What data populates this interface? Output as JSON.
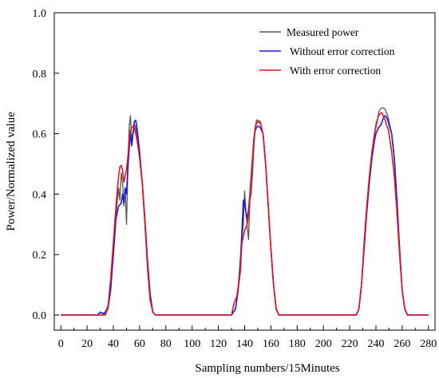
{
  "chart_data": {
    "type": "line",
    "title": "",
    "xlabel": "Sampling numbers/15Minutes",
    "ylabel": "Power/Normalized value",
    "xlim": [
      -5,
      285
    ],
    "ylim": [
      -0.05,
      1.0
    ],
    "xticks": [
      0,
      20,
      40,
      60,
      80,
      100,
      120,
      140,
      160,
      180,
      200,
      220,
      240,
      260,
      280
    ],
    "yticks": [
      0.0,
      0.2,
      0.4,
      0.6,
      0.8,
      1.0
    ],
    "grid": false,
    "legend_position": "top-right",
    "series": [
      {
        "name": "Measured power",
        "color": "#555555",
        "x": [
          0,
          30,
          32,
          34,
          36,
          38,
          40,
          42,
          44,
          45,
          46,
          47,
          48,
          49,
          50,
          51,
          52,
          53,
          54,
          55,
          56,
          57,
          58,
          60,
          62,
          64,
          66,
          68,
          70,
          72,
          74,
          80,
          130,
          133,
          135,
          137,
          138,
          139,
          140,
          141,
          142,
          143,
          144,
          145,
          146,
          147,
          148,
          149,
          150,
          152,
          154,
          156,
          158,
          160,
          162,
          164,
          166,
          168,
          170,
          175,
          225,
          227,
          229,
          231,
          233,
          235,
          237,
          239,
          240,
          241,
          242,
          243,
          244,
          245,
          246,
          247,
          248,
          249,
          250,
          252,
          254,
          256,
          258,
          260,
          262,
          264,
          270,
          280
        ],
        "y": [
          0,
          0,
          0,
          0.005,
          0.02,
          0.08,
          0.2,
          0.33,
          0.42,
          0.38,
          0.47,
          0.44,
          0.36,
          0.42,
          0.3,
          0.48,
          0.62,
          0.66,
          0.58,
          0.6,
          0.63,
          0.62,
          0.6,
          0.52,
          0.43,
          0.3,
          0.15,
          0.05,
          0.01,
          0,
          0,
          0,
          0,
          0.02,
          0.08,
          0.15,
          0.26,
          0.3,
          0.41,
          0.34,
          0.29,
          0.25,
          0.38,
          0.4,
          0.47,
          0.55,
          0.62,
          0.645,
          0.645,
          0.64,
          0.6,
          0.5,
          0.36,
          0.22,
          0.1,
          0.02,
          0,
          0,
          0,
          0,
          0,
          0.02,
          0.1,
          0.24,
          0.36,
          0.46,
          0.54,
          0.6,
          0.62,
          0.64,
          0.67,
          0.68,
          0.685,
          0.685,
          0.685,
          0.68,
          0.67,
          0.66,
          0.64,
          0.6,
          0.52,
          0.38,
          0.22,
          0.08,
          0.02,
          0,
          0,
          0
        ]
      },
      {
        "name": "Without error correction",
        "color": "#1a1adc",
        "x": [
          0,
          28,
          30,
          32,
          34,
          36,
          38,
          40,
          42,
          44,
          46,
          47,
          48,
          49,
          50,
          51,
          52,
          53,
          54,
          55,
          56,
          57,
          58,
          60,
          62,
          64,
          66,
          68,
          70,
          72,
          74,
          80,
          130,
          133,
          135,
          137,
          138,
          139,
          140,
          141,
          142,
          143,
          144,
          145,
          146,
          147,
          148,
          149,
          150,
          152,
          154,
          156,
          158,
          160,
          162,
          164,
          166,
          168,
          170,
          175,
          225,
          227,
          229,
          231,
          233,
          235,
          237,
          239,
          240,
          241,
          242,
          243,
          244,
          245,
          246,
          247,
          248,
          249,
          250,
          252,
          254,
          256,
          258,
          260,
          262,
          264,
          270,
          280
        ],
        "y": [
          0,
          0,
          0.01,
          0.005,
          0.01,
          0.03,
          0.09,
          0.2,
          0.32,
          0.36,
          0.37,
          0.4,
          0.37,
          0.42,
          0.4,
          0.48,
          0.55,
          0.6,
          0.56,
          0.6,
          0.64,
          0.645,
          0.62,
          0.54,
          0.44,
          0.32,
          0.18,
          0.07,
          0.01,
          0,
          0,
          0,
          0,
          0.02,
          0.08,
          0.2,
          0.28,
          0.38,
          0.37,
          0.34,
          0.32,
          0.35,
          0.4,
          0.46,
          0.52,
          0.58,
          0.61,
          0.62,
          0.625,
          0.62,
          0.6,
          0.5,
          0.36,
          0.22,
          0.1,
          0.02,
          0,
          0,
          0,
          0,
          0,
          0.02,
          0.1,
          0.22,
          0.34,
          0.44,
          0.52,
          0.58,
          0.6,
          0.61,
          0.62,
          0.625,
          0.63,
          0.645,
          0.655,
          0.66,
          0.655,
          0.645,
          0.63,
          0.6,
          0.52,
          0.38,
          0.22,
          0.08,
          0.02,
          0,
          0,
          0
        ]
      },
      {
        "name": "With error correction",
        "color": "#e8141e",
        "x": [
          0,
          34,
          36,
          38,
          40,
          42,
          44,
          45,
          46,
          47,
          48,
          49,
          50,
          51,
          52,
          53,
          54,
          55,
          56,
          57,
          58,
          60,
          62,
          64,
          66,
          68,
          70,
          72,
          74,
          80,
          130,
          132,
          134,
          136,
          138,
          140,
          142,
          143,
          144,
          145,
          146,
          147,
          148,
          149,
          150,
          152,
          154,
          156,
          158,
          160,
          162,
          164,
          166,
          168,
          170,
          175,
          225,
          227,
          229,
          231,
          233,
          235,
          237,
          239,
          240,
          241,
          242,
          243,
          244,
          245,
          246,
          247,
          248,
          249,
          250,
          252,
          254,
          256,
          258,
          260,
          262,
          264,
          270,
          280
        ],
        "y": [
          0,
          0,
          0.03,
          0.12,
          0.24,
          0.36,
          0.46,
          0.49,
          0.495,
          0.48,
          0.44,
          0.46,
          0.48,
          0.52,
          0.58,
          0.61,
          0.62,
          0.625,
          0.62,
          0.6,
          0.58,
          0.52,
          0.44,
          0.31,
          0.16,
          0.05,
          0.01,
          0,
          0,
          0,
          0,
          0.04,
          0.06,
          0.12,
          0.24,
          0.28,
          0.3,
          0.34,
          0.4,
          0.46,
          0.52,
          0.58,
          0.62,
          0.635,
          0.64,
          0.635,
          0.6,
          0.5,
          0.36,
          0.22,
          0.1,
          0.02,
          0,
          0,
          0,
          0,
          0,
          0.02,
          0.1,
          0.24,
          0.36,
          0.46,
          0.54,
          0.6,
          0.63,
          0.645,
          0.66,
          0.665,
          0.67,
          0.665,
          0.655,
          0.645,
          0.63,
          0.62,
          0.6,
          0.54,
          0.46,
          0.34,
          0.2,
          0.08,
          0.02,
          0,
          0,
          0
        ]
      }
    ]
  }
}
